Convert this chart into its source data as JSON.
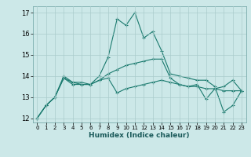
{
  "title": "",
  "xlabel": "Humidex (Indice chaleur)",
  "bg_color": "#cce8e8",
  "line_color": "#1a7a6e",
  "grid_color": "#aacccc",
  "xlim": [
    -0.5,
    23.5
  ],
  "ylim": [
    11.8,
    17.3
  ],
  "xticks": [
    0,
    1,
    2,
    3,
    4,
    5,
    6,
    7,
    8,
    9,
    10,
    11,
    12,
    13,
    14,
    15,
    16,
    17,
    18,
    19,
    20,
    21,
    22,
    23
  ],
  "yticks": [
    12,
    13,
    14,
    15,
    16,
    17
  ],
  "series1_x": [
    0,
    1,
    2,
    3,
    4,
    5,
    6,
    7,
    8,
    9,
    10,
    11,
    12,
    13,
    14,
    15,
    16,
    17,
    18,
    19,
    20,
    21,
    22,
    23
  ],
  "series1_y": [
    12.0,
    12.6,
    13.0,
    13.9,
    13.7,
    13.7,
    13.6,
    14.0,
    14.9,
    16.7,
    16.4,
    17.0,
    15.8,
    16.1,
    15.2,
    14.1,
    14.0,
    13.9,
    13.8,
    13.8,
    13.5,
    12.3,
    12.6,
    13.3
  ],
  "series2_x": [
    0,
    1,
    2,
    3,
    4,
    5,
    6,
    7,
    8,
    9,
    10,
    11,
    12,
    13,
    14,
    15,
    16,
    17,
    18,
    19,
    20,
    21,
    22,
    23
  ],
  "series2_y": [
    12.0,
    12.6,
    13.0,
    14.0,
    13.7,
    13.6,
    13.6,
    13.8,
    14.1,
    14.3,
    14.5,
    14.6,
    14.7,
    14.8,
    14.8,
    13.9,
    13.6,
    13.5,
    13.6,
    12.9,
    13.4,
    13.5,
    13.8,
    13.3
  ],
  "series3_x": [
    0,
    1,
    2,
    3,
    4,
    5,
    6,
    7,
    8,
    9,
    10,
    11,
    12,
    13,
    14,
    15,
    16,
    17,
    18,
    19,
    20,
    21,
    22,
    23
  ],
  "series3_y": [
    12.0,
    12.6,
    13.0,
    13.9,
    13.6,
    13.6,
    13.6,
    13.8,
    13.9,
    13.2,
    13.4,
    13.5,
    13.6,
    13.7,
    13.8,
    13.7,
    13.6,
    13.5,
    13.5,
    13.4,
    13.4,
    13.3,
    13.3,
    13.3
  ]
}
